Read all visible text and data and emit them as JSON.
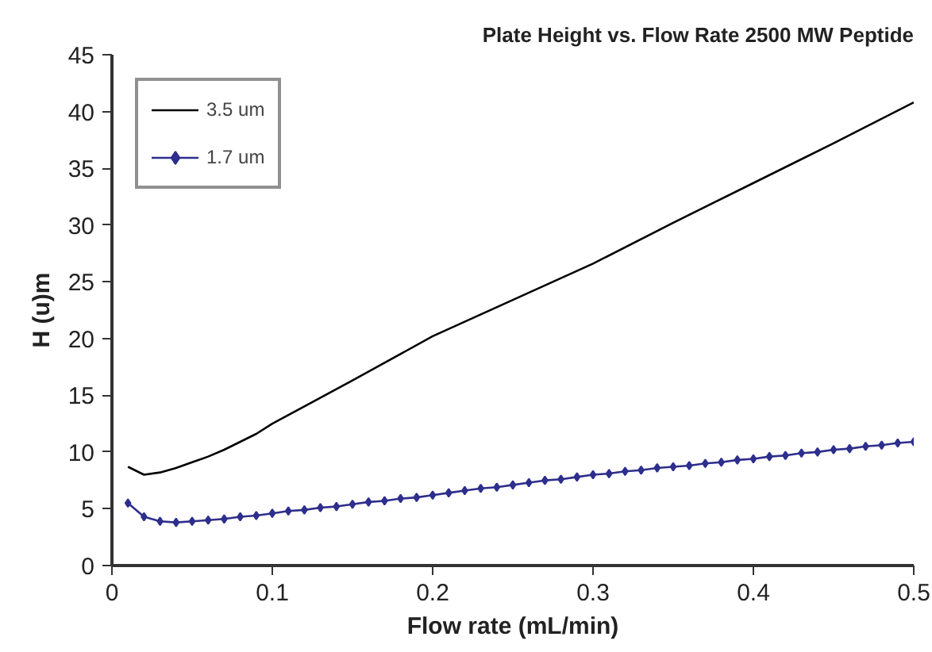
{
  "chart_data": {
    "type": "line",
    "title": "Plate Height vs. Flow Rate 2500 MW Peptide",
    "xlabel": "Flow rate (mL/min)",
    "ylabel": "H (u)m",
    "xlim": [
      0,
      0.5
    ],
    "xticks": [
      0,
      0.1,
      0.2,
      0.3,
      0.4,
      0.5
    ],
    "ylim": [
      0,
      45
    ],
    "yticks": [
      0,
      5,
      10,
      15,
      20,
      25,
      30,
      35,
      40,
      45
    ],
    "grid": false,
    "legend": "top left",
    "line_style": "solid",
    "series": [
      {
        "name": "3.5 um",
        "color": "#000000",
        "marker": "none",
        "x": [
          0.01,
          0.02,
          0.03,
          0.04,
          0.05,
          0.06,
          0.07,
          0.08,
          0.09,
          0.1,
          0.15,
          0.2,
          0.25,
          0.3,
          0.35,
          0.4,
          0.45,
          0.5
        ],
        "values": [
          8.7,
          8.0,
          8.2,
          8.6,
          9.1,
          9.6,
          10.2,
          10.9,
          11.6,
          12.5,
          16.3,
          20.2,
          23.4,
          26.6,
          30.2,
          33.7,
          37.2,
          40.8
        ]
      },
      {
        "name": "1.7 um",
        "color": "#2e2e8c",
        "marker": "diamond",
        "x": [
          0.01,
          0.02,
          0.03,
          0.04,
          0.05,
          0.06,
          0.07,
          0.08,
          0.09,
          0.1,
          0.11,
          0.12,
          0.13,
          0.14,
          0.15,
          0.16,
          0.17,
          0.18,
          0.19,
          0.2,
          0.21,
          0.22,
          0.23,
          0.24,
          0.25,
          0.26,
          0.27,
          0.28,
          0.29,
          0.3,
          0.31,
          0.32,
          0.33,
          0.34,
          0.35,
          0.36,
          0.37,
          0.38,
          0.39,
          0.4,
          0.41,
          0.42,
          0.43,
          0.44,
          0.45,
          0.46,
          0.47,
          0.48,
          0.49,
          0.5
        ],
        "values": [
          5.5,
          4.3,
          3.9,
          3.8,
          3.9,
          4.0,
          4.1,
          4.3,
          4.4,
          4.6,
          4.8,
          4.9,
          5.1,
          5.2,
          5.4,
          5.6,
          5.7,
          5.9,
          6.0,
          6.2,
          6.4,
          6.6,
          6.8,
          6.9,
          7.1,
          7.3,
          7.5,
          7.6,
          7.8,
          8.0,
          8.1,
          8.3,
          8.4,
          8.6,
          8.7,
          8.8,
          9.0,
          9.1,
          9.3,
          9.4,
          9.6,
          9.7,
          9.9,
          10.0,
          10.2,
          10.3,
          10.5,
          10.6,
          10.8,
          10.9
        ]
      }
    ]
  }
}
